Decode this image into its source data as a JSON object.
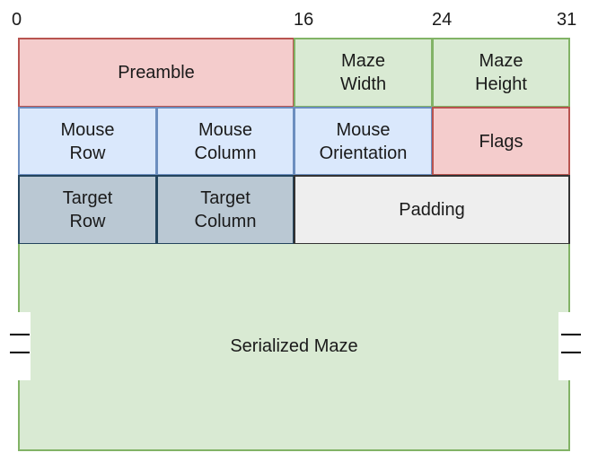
{
  "bits": {
    "b0": "0",
    "b16": "16",
    "b24": "24",
    "b31": "31"
  },
  "fields": {
    "preamble": "Preamble",
    "maze_width": "Maze\nWidth",
    "maze_height": "Maze\nHeight",
    "mouse_row": "Mouse\nRow",
    "mouse_column": "Mouse\nColumn",
    "mouse_orientation": "Mouse\nOrientation",
    "flags": "Flags",
    "target_row": "Target\nRow",
    "target_column": "Target\nColumn",
    "padding": "Padding",
    "serialized_maze": "Serialized Maze"
  },
  "colors": {
    "red_fill": "#f4cccc",
    "green_fill": "#d9ead3",
    "blue_fill": "#dae8fc",
    "slate_fill": "#bac8d3",
    "gray_fill": "#eeeeee"
  }
}
